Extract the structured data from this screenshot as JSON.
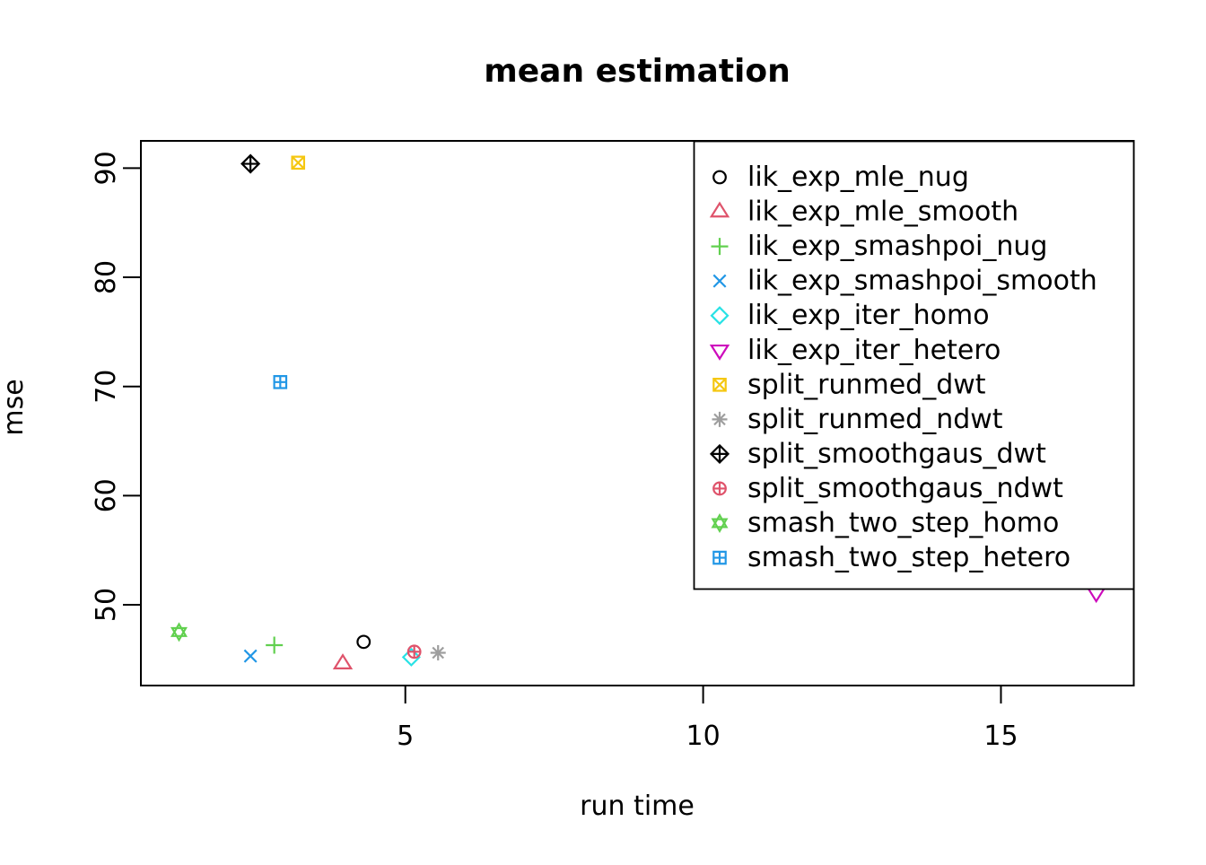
{
  "chart_data": {
    "type": "scatter",
    "title": "mean estimation",
    "xlabel": "run time",
    "ylabel": "mse",
    "grid": false,
    "legend_position": "top-right",
    "x_axis": {
      "ticks": [
        5,
        10,
        15
      ],
      "range": [
        0.56,
        17.23
      ]
    },
    "y_axis": {
      "ticks": [
        50,
        60,
        70,
        80,
        90
      ],
      "range": [
        42.6,
        92.5
      ]
    },
    "series": [
      {
        "name": "lik_exp_mle_nug",
        "symbol": "circle",
        "color": "#000000",
        "points": [
          {
            "x": 4.3,
            "y": 46.6
          }
        ]
      },
      {
        "name": "lik_exp_mle_smooth",
        "symbol": "triangle-up",
        "color": "#DF536B",
        "points": [
          {
            "x": 3.95,
            "y": 44.6
          }
        ]
      },
      {
        "name": "lik_exp_smashpoi_nug",
        "symbol": "plus",
        "color": "#61D04F",
        "points": [
          {
            "x": 2.8,
            "y": 46.3
          }
        ]
      },
      {
        "name": "lik_exp_smashpoi_smooth",
        "symbol": "x",
        "color": "#2297E6",
        "points": [
          {
            "x": 2.4,
            "y": 45.3
          }
        ]
      },
      {
        "name": "lik_exp_iter_homo",
        "symbol": "diamond",
        "color": "#28E2E5",
        "points": [
          {
            "x": 5.1,
            "y": 45.2
          }
        ]
      },
      {
        "name": "lik_exp_iter_hetero",
        "symbol": "triangle-down",
        "color": "#CD0BBC",
        "points": [
          {
            "x": 16.6,
            "y": 51.1
          }
        ]
      },
      {
        "name": "split_runmed_dwt",
        "symbol": "square-x",
        "color": "#F5C710",
        "points": [
          {
            "x": 3.2,
            "y": 90.5
          }
        ]
      },
      {
        "name": "split_runmed_ndwt",
        "symbol": "asterisk",
        "color": "#9E9E9E",
        "points": [
          {
            "x": 5.55,
            "y": 45.6
          }
        ]
      },
      {
        "name": "split_smoothgaus_dwt",
        "symbol": "diamond-plus",
        "color": "#000000",
        "points": [
          {
            "x": 2.4,
            "y": 90.4
          }
        ]
      },
      {
        "name": "split_smoothgaus_ndwt",
        "symbol": "circle-plus",
        "color": "#DF536B",
        "points": [
          {
            "x": 5.15,
            "y": 45.7
          }
        ]
      },
      {
        "name": "smash_two_step_homo",
        "symbol": "hexagram",
        "color": "#61D04F",
        "points": [
          {
            "x": 1.2,
            "y": 47.5
          }
        ]
      },
      {
        "name": "smash_two_step_hetero",
        "symbol": "square-plus",
        "color": "#2297E6",
        "points": [
          {
            "x": 2.9,
            "y": 70.4
          }
        ]
      }
    ]
  }
}
